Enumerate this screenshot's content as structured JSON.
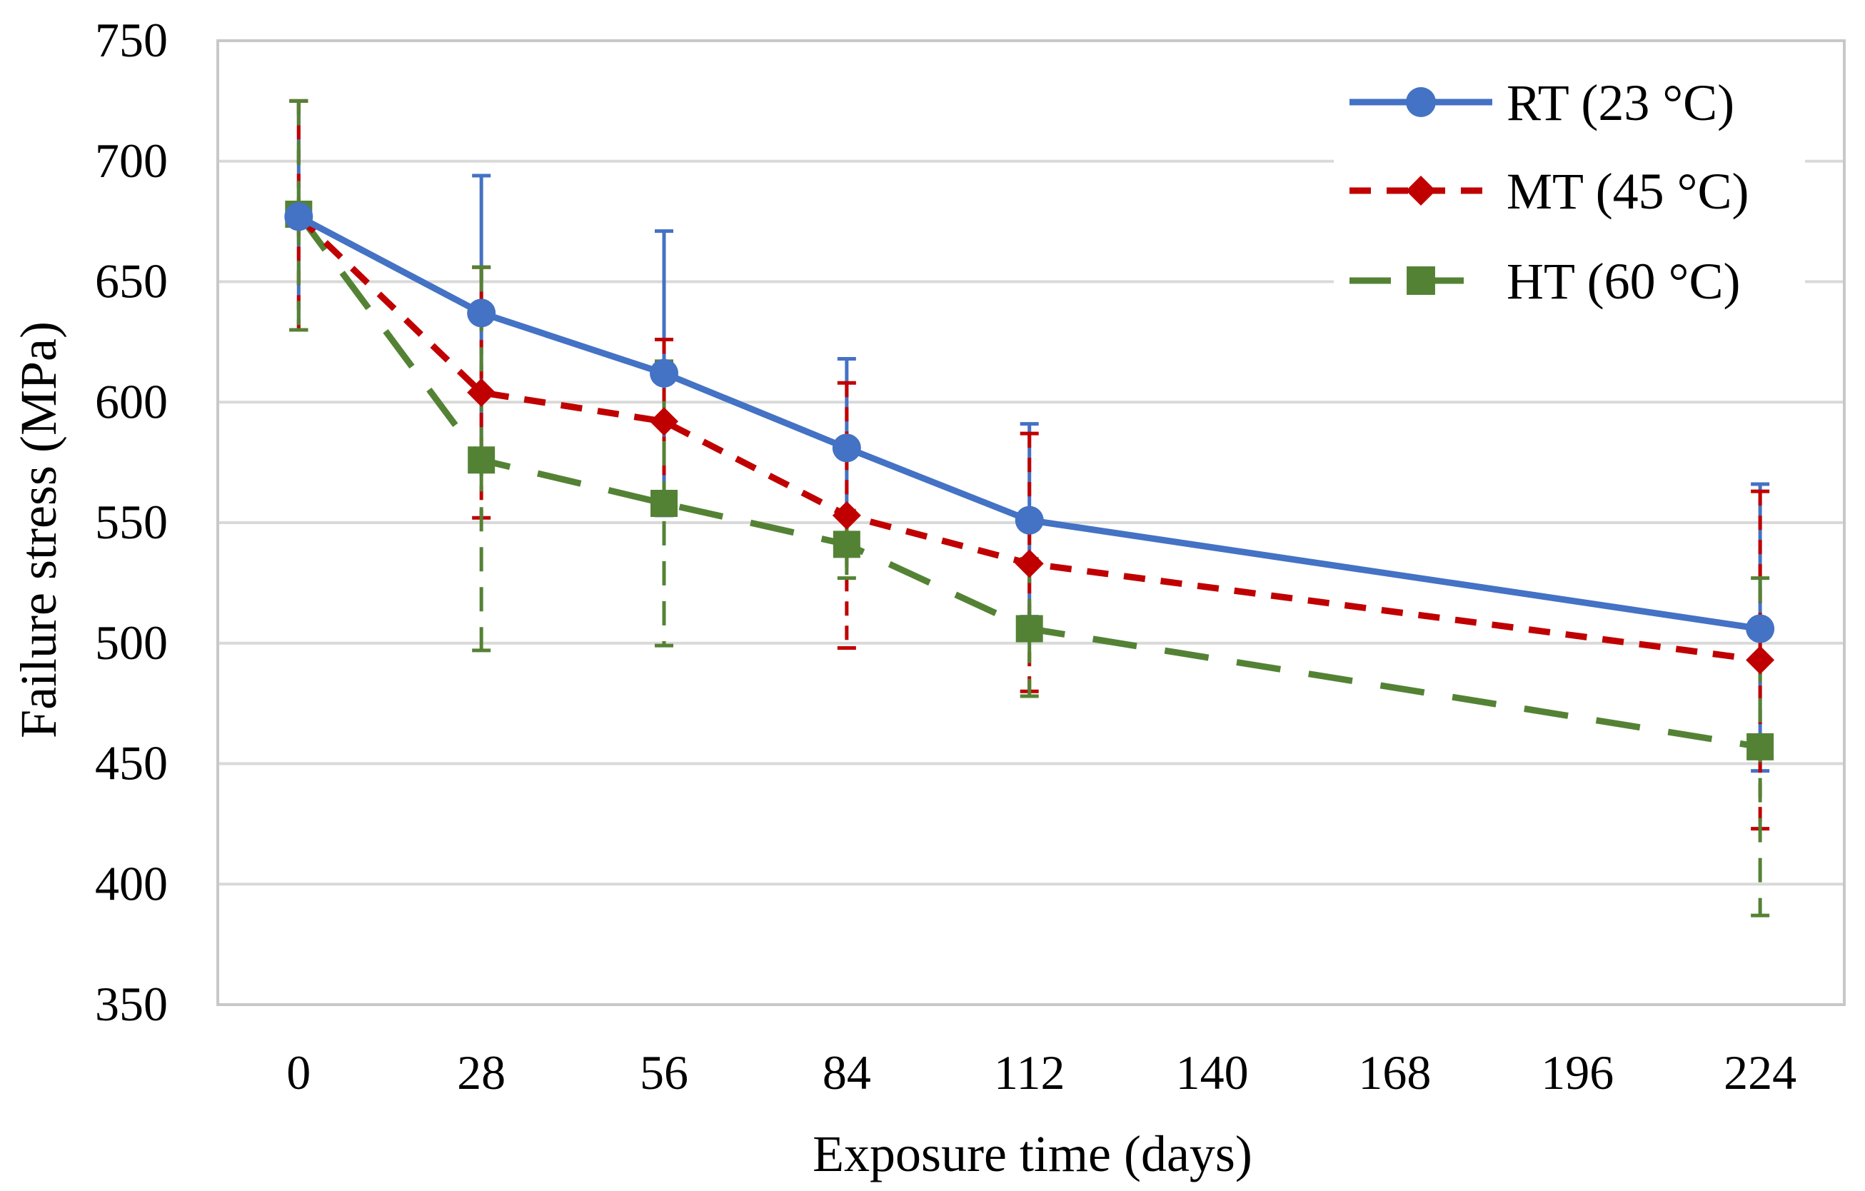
{
  "chart_data": {
    "type": "line",
    "title": "",
    "xlabel": "Exposure time (days)",
    "ylabel": "Failure stress (MPa)",
    "xlim": [
      -12.4,
      236.9
    ],
    "ylim": [
      350,
      750
    ],
    "x_ticks": [
      0,
      28,
      56,
      84,
      112,
      140,
      168,
      196,
      224
    ],
    "x_tick_labels": [
      "0",
      "28",
      "56",
      "84",
      "112",
      "140",
      "168",
      "196",
      "224"
    ],
    "y_ticks": [
      350,
      400,
      450,
      500,
      550,
      600,
      650,
      700,
      750
    ],
    "y_tick_labels": [
      "350",
      "400",
      "450",
      "500",
      "550",
      "600",
      "650",
      "700",
      "750"
    ],
    "grid": true,
    "legend_position": "top-right",
    "series": [
      {
        "name": "RT (23 °C)",
        "color": "#4472c4",
        "line_style": "solid",
        "marker": "circle",
        "x": [
          0,
          28,
          56,
          84,
          112,
          224
        ],
        "values": [
          677,
          637,
          612,
          581,
          551,
          506
        ],
        "error_upper": [
          725,
          694,
          671,
          618,
          591,
          566
        ],
        "error_lower": [
          630,
          580,
          553,
          544,
          511,
          447
        ]
      },
      {
        "name": "MT (45 °C)",
        "color": "#c00000",
        "line_style": "dash",
        "marker": "diamond",
        "x": [
          0,
          28,
          56,
          84,
          112,
          224
        ],
        "values": [
          677,
          604,
          592,
          553,
          533,
          493
        ],
        "error_upper": [
          725,
          656,
          626,
          608,
          587,
          563
        ],
        "error_lower": [
          630,
          552,
          558,
          498,
          480,
          423
        ]
      },
      {
        "name": "HT (60 °C)",
        "color": "#548235",
        "line_style": "long-dash",
        "marker": "square",
        "x": [
          0,
          28,
          56,
          84,
          112,
          224
        ],
        "values": [
          678,
          576,
          558,
          541,
          506,
          457
        ],
        "error_upper": [
          725,
          656,
          617,
          555,
          535,
          527
        ],
        "error_lower": [
          630,
          497,
          499,
          527,
          478,
          387
        ]
      }
    ]
  }
}
